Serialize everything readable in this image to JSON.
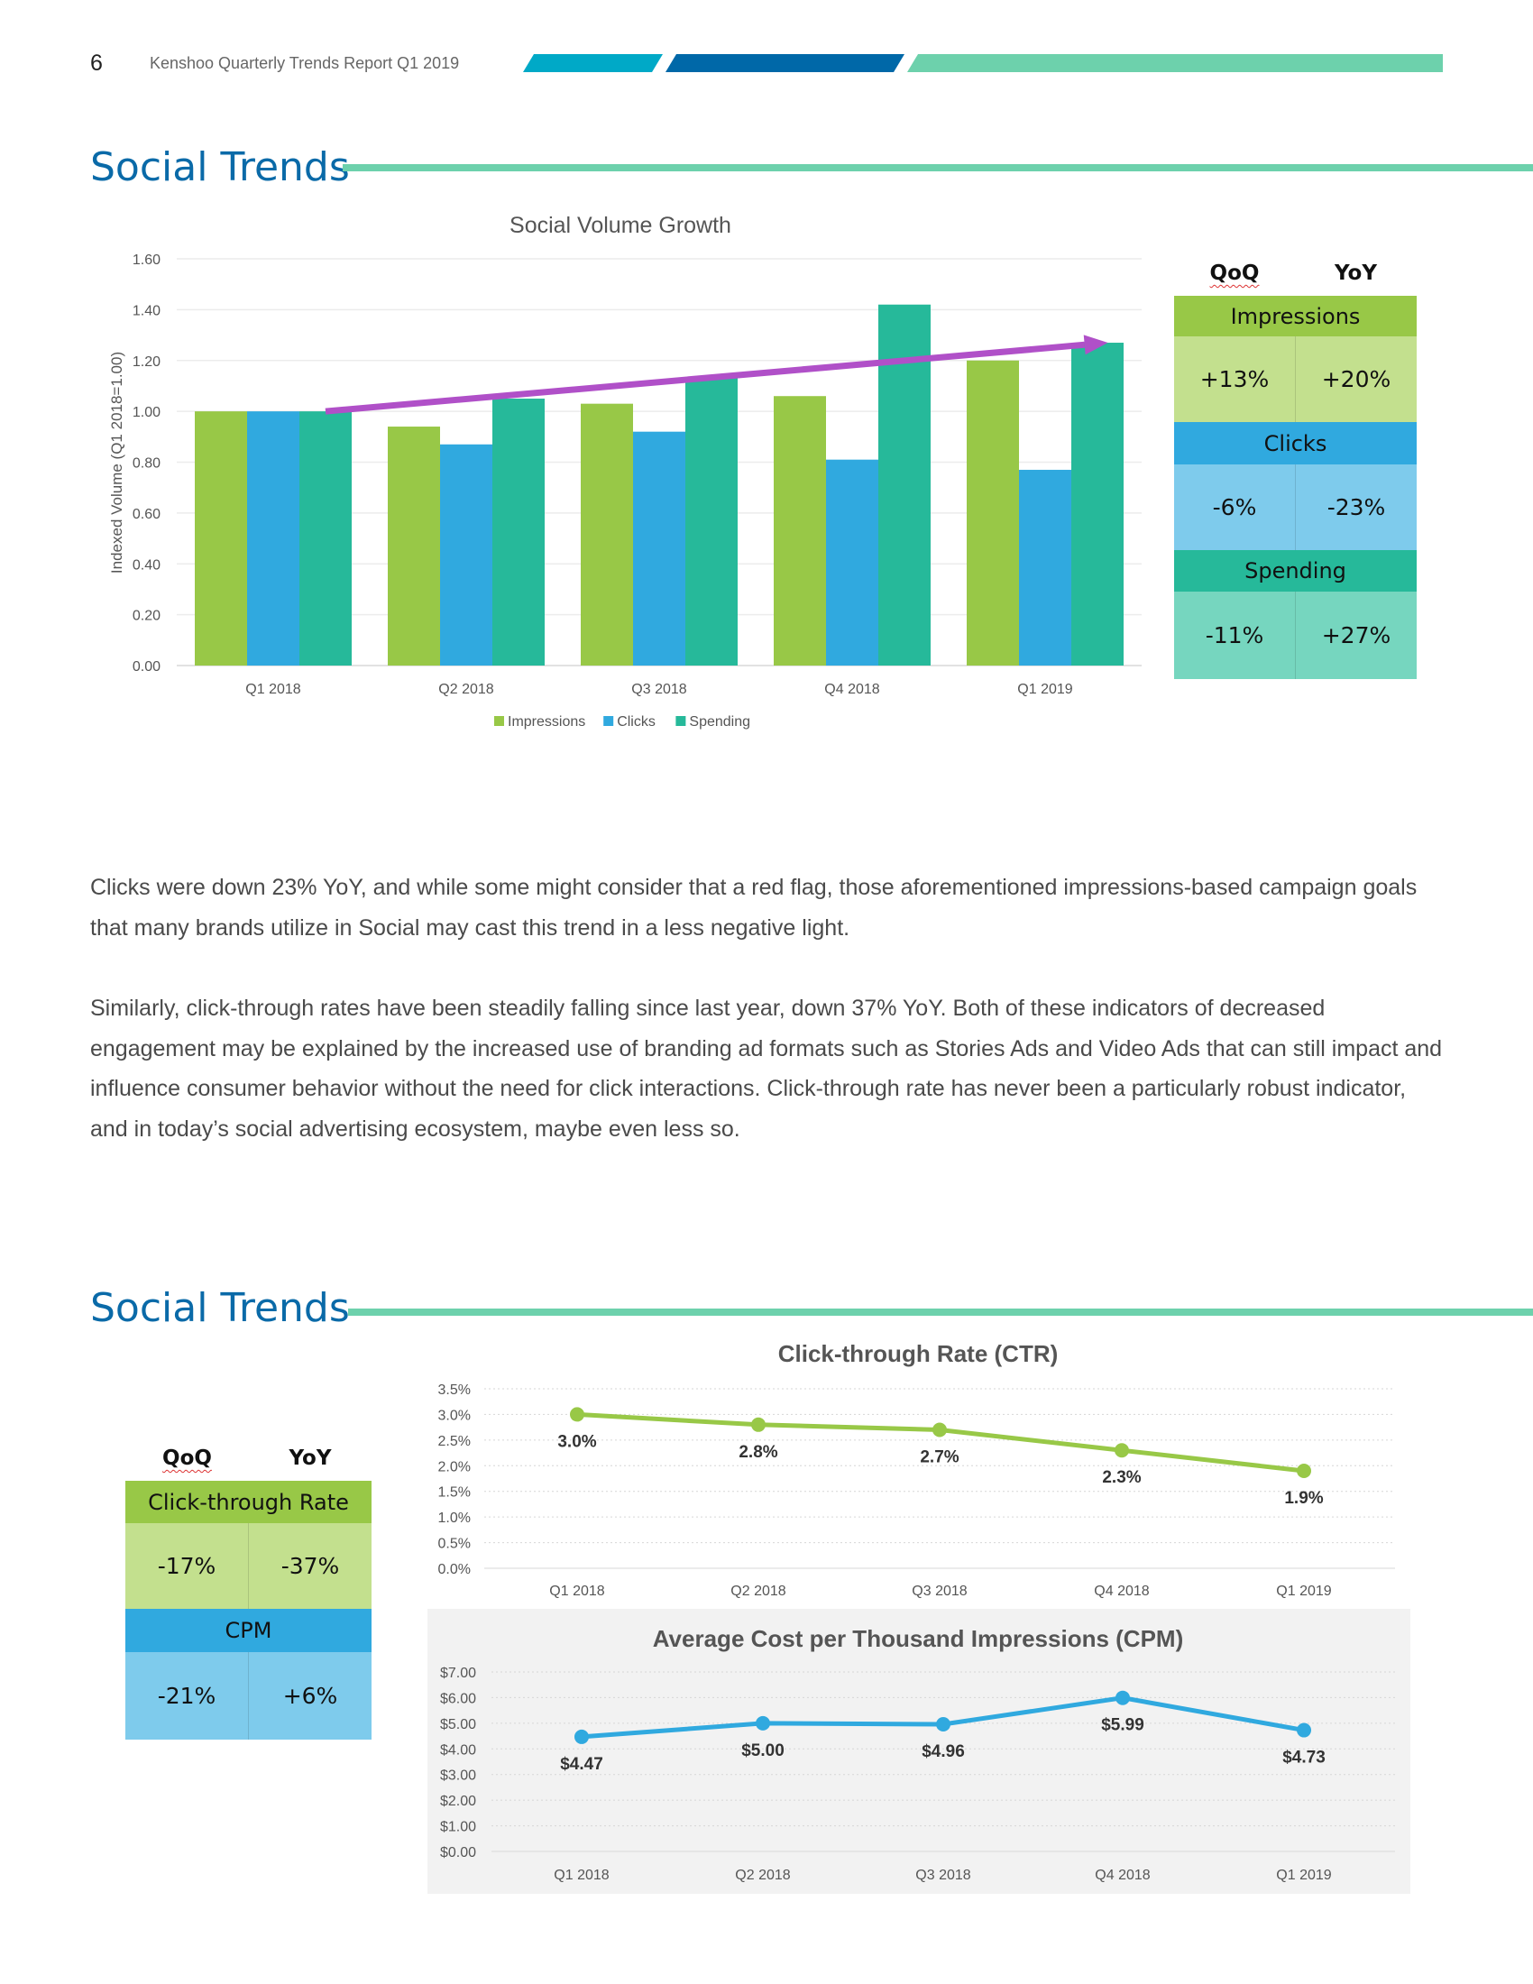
{
  "header": {
    "page_number": "6",
    "report_title": "Kenshoo Quarterly Trends Report Q1 2019"
  },
  "colors": {
    "cyan": "#00a9c7",
    "navy": "#0068a8",
    "mint": "#6dd1ac",
    "heading": "#0a6aa8",
    "impressions": "#98c847",
    "clicks": "#30a9df",
    "spending": "#26b99a",
    "arrow": "#b050c8"
  },
  "section1": {
    "heading": "Social Trends",
    "table": {
      "col_qoq": "QoQ",
      "col_yoy": "YoY",
      "rows": [
        {
          "label": "Impressions",
          "qoq": "+13%",
          "yoy": "+20%"
        },
        {
          "label": "Clicks",
          "qoq": "-6%",
          "yoy": "-23%"
        },
        {
          "label": "Spending",
          "qoq": "-11%",
          "yoy": "+27%"
        }
      ]
    }
  },
  "body": {
    "paragraph1": "Clicks were down 23% YoY, and while some might consider that a red flag, those aforementioned impressions-based campaign goals that many brands utilize in Social may cast this trend in a less negative light.",
    "paragraph2": "Similarly, click-through rates have been steadily falling since last year, down 37% YoY. Both of these indicators of decreased engagement may be explained by the increased use of branding ad formats such as Stories Ads and Video Ads that can still impact and influence consumer behavior without the need for click interactions. Click-through rate has never been a particularly robust indicator, and in today’s social advertising ecosystem, maybe even less so."
  },
  "section2": {
    "heading": "Social Trends",
    "table": {
      "col_qoq": "QoQ",
      "col_yoy": "YoY",
      "rows": [
        {
          "label": "Click-through Rate",
          "qoq": "-17%",
          "yoy": "-37%"
        },
        {
          "label": "CPM",
          "qoq": "-21%",
          "yoy": "+6%"
        }
      ]
    }
  },
  "chart_data": [
    {
      "type": "bar",
      "title": "Social Volume Growth",
      "xlabel": "",
      "ylabel": "Indexed Volume (Q1 2018=1.00)",
      "ylim": [
        0,
        1.6
      ],
      "yticks": [
        "0.00",
        "0.20",
        "0.40",
        "0.60",
        "0.80",
        "1.00",
        "1.20",
        "1.40",
        "1.60"
      ],
      "categories": [
        "Q1 2018",
        "Q2 2018",
        "Q3 2018",
        "Q4 2018",
        "Q1 2019"
      ],
      "series": [
        {
          "name": "Impressions",
          "values": [
            1.0,
            0.94,
            1.03,
            1.06,
            1.2
          ]
        },
        {
          "name": "Clicks",
          "values": [
            1.0,
            0.87,
            0.92,
            0.81,
            0.77
          ]
        },
        {
          "name": "Spending",
          "values": [
            1.0,
            1.05,
            1.13,
            1.42,
            1.27
          ]
        }
      ],
      "legend": "bottom",
      "grid": true,
      "annotation": {
        "type": "trend-arrow",
        "from_value": 1.0,
        "to_value": 1.27
      }
    },
    {
      "type": "line",
      "title": "Click-through Rate (CTR)",
      "ylim": [
        0,
        3.5
      ],
      "yticks": [
        "0.0%",
        "0.5%",
        "1.0%",
        "1.5%",
        "2.0%",
        "2.5%",
        "3.0%",
        "3.5%"
      ],
      "categories": [
        "Q1 2018",
        "Q2 2018",
        "Q3 2018",
        "Q4 2018",
        "Q1 2019"
      ],
      "values": [
        3.0,
        2.8,
        2.7,
        2.3,
        1.9
      ],
      "data_labels": [
        "3.0%",
        "2.8%",
        "2.7%",
        "2.3%",
        "1.9%"
      ],
      "grid": true
    },
    {
      "type": "line",
      "title": "Average Cost per Thousand Impressions (CPM)",
      "ylim": [
        0,
        7
      ],
      "yticks": [
        "$0.00",
        "$1.00",
        "$2.00",
        "$3.00",
        "$4.00",
        "$5.00",
        "$6.00",
        "$7.00"
      ],
      "categories": [
        "Q1 2018",
        "Q2 2018",
        "Q3 2018",
        "Q4 2018",
        "Q1 2019"
      ],
      "values": [
        4.47,
        5.0,
        4.96,
        5.99,
        4.73
      ],
      "data_labels": [
        "$4.47",
        "$5.00",
        "$4.96",
        "$5.99",
        "$4.73"
      ],
      "grid": true
    }
  ]
}
